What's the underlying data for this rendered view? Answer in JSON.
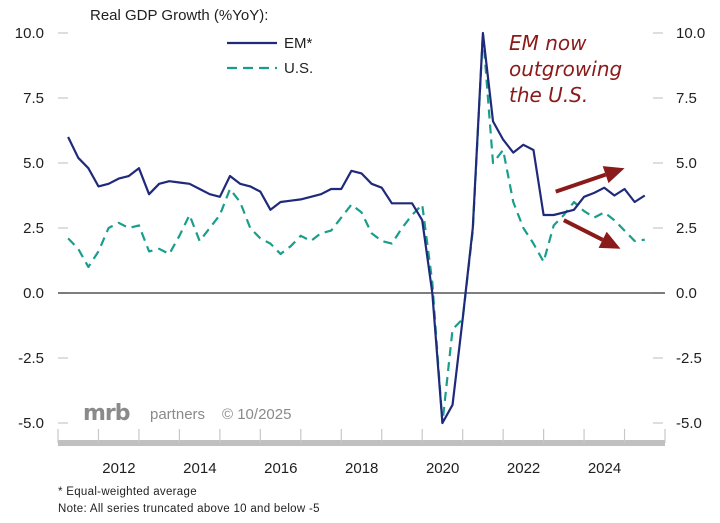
{
  "chart_data": {
    "type": "line",
    "title": "Real  GDP Growth (%YoY):",
    "xlabel": "",
    "ylabel": "",
    "ylim": [
      -5,
      10
    ],
    "xlim": [
      2010.5,
      2025.5
    ],
    "yticks": [
      10.0,
      7.5,
      5.0,
      2.5,
      0.0,
      -2.5,
      -5.0
    ],
    "ytick_labels": [
      "10.0",
      "7.5",
      "5.0",
      "2.5",
      "0.0",
      "-2.5",
      "-5.0"
    ],
    "xtick_labels": [
      "2012",
      "2014",
      "2016",
      "2018",
      "2020",
      "2022",
      "2024"
    ],
    "xtick_label_years": [
      2012,
      2014,
      2016,
      2018,
      2020,
      2022,
      2024
    ],
    "grid": false,
    "zero_line": true,
    "legend_position": "top-left",
    "series": [
      {
        "name": "EM*",
        "color": "#1f2a7a",
        "style": "solid",
        "x": [
          2010.75,
          2011.0,
          2011.25,
          2011.5,
          2011.75,
          2012.0,
          2012.25,
          2012.5,
          2012.75,
          2013.0,
          2013.25,
          2013.5,
          2013.75,
          2014.0,
          2014.25,
          2014.5,
          2014.75,
          2015.0,
          2015.25,
          2015.5,
          2015.75,
          2016.0,
          2016.25,
          2016.5,
          2016.75,
          2017.0,
          2017.25,
          2017.5,
          2017.75,
          2018.0,
          2018.25,
          2018.5,
          2018.75,
          2019.0,
          2019.25,
          2019.5,
          2019.75,
          2020.0,
          2020.25,
          2020.5,
          2020.75,
          2021.0,
          2021.25,
          2021.5,
          2021.75,
          2022.0,
          2022.25,
          2022.5,
          2022.75,
          2023.0,
          2023.25,
          2023.5,
          2023.75,
          2024.0,
          2024.25,
          2024.5,
          2024.75,
          2025.0
        ],
        "values": [
          6.0,
          5.2,
          4.8,
          4.1,
          4.2,
          4.4,
          4.5,
          4.8,
          3.8,
          4.2,
          4.3,
          4.25,
          4.2,
          4.0,
          3.8,
          3.7,
          4.5,
          4.2,
          4.1,
          3.9,
          3.2,
          3.5,
          3.55,
          3.6,
          3.7,
          3.8,
          4.0,
          4.0,
          4.7,
          4.6,
          4.2,
          4.05,
          3.45,
          3.45,
          3.45,
          2.8,
          0.0,
          -5.0,
          -4.3,
          -1.0,
          2.5,
          10.0,
          6.6,
          5.9,
          5.4,
          5.7,
          5.5,
          3.0,
          3.0,
          3.1,
          3.2,
          3.7,
          3.85,
          4.05,
          3.75,
          4.0,
          3.5,
          3.75
        ]
      },
      {
        "name": "U.S.",
        "color": "#1a9e8c",
        "style": "dashed",
        "x": [
          2010.75,
          2011.0,
          2011.25,
          2011.5,
          2011.75,
          2012.0,
          2012.25,
          2012.5,
          2012.75,
          2013.0,
          2013.25,
          2013.5,
          2013.75,
          2014.0,
          2014.25,
          2014.5,
          2014.75,
          2015.0,
          2015.25,
          2015.5,
          2015.75,
          2016.0,
          2016.25,
          2016.5,
          2016.75,
          2017.0,
          2017.25,
          2017.5,
          2017.75,
          2018.0,
          2018.25,
          2018.5,
          2018.75,
          2019.0,
          2019.25,
          2019.5,
          2019.75,
          2020.0,
          2020.25,
          2020.5,
          2020.75,
          2021.0,
          2021.25,
          2021.5,
          2021.75,
          2022.0,
          2022.25,
          2022.5,
          2022.75,
          2023.0,
          2023.25,
          2023.5,
          2023.75,
          2024.0,
          2024.25,
          2024.5,
          2024.75,
          2025.0
        ],
        "values": [
          2.1,
          1.7,
          1.0,
          1.6,
          2.5,
          2.7,
          2.5,
          2.6,
          1.6,
          1.7,
          1.5,
          2.2,
          3.0,
          2.0,
          2.5,
          3.0,
          4.0,
          3.5,
          2.5,
          2.1,
          1.9,
          1.5,
          1.8,
          2.2,
          2.0,
          2.3,
          2.4,
          2.9,
          3.4,
          3.1,
          2.3,
          2.0,
          1.9,
          2.5,
          3.0,
          3.4,
          0.4,
          -5.0,
          -1.4,
          -1.0,
          2.4,
          10.0,
          5.0,
          5.5,
          3.5,
          2.5,
          1.9,
          1.2,
          2.6,
          3.0,
          3.5,
          3.15,
          2.9,
          3.1,
          2.8,
          2.4,
          2.0,
          2.05
        ]
      }
    ],
    "annotations": [
      {
        "text_lines": [
          "EM now",
          "outgrowing",
          "the U.S."
        ],
        "color": "#8b1a1a"
      },
      {
        "type": "arrow",
        "direction": "up",
        "from": [
          2022.8,
          3.9
        ],
        "to": [
          2024.5,
          4.8
        ],
        "color": "#8b1a1a"
      },
      {
        "type": "arrow",
        "direction": "down",
        "from": [
          2023.0,
          2.8
        ],
        "to": [
          2024.4,
          1.7
        ],
        "color": "#8b1a1a"
      }
    ]
  },
  "branding": {
    "logo": "mrb",
    "partners": "partners",
    "copyright": "© 10/2025"
  },
  "footnotes": {
    "line1": "* Equal-weighted average",
    "line2": "Note: All series truncated above 10 and below -5"
  }
}
